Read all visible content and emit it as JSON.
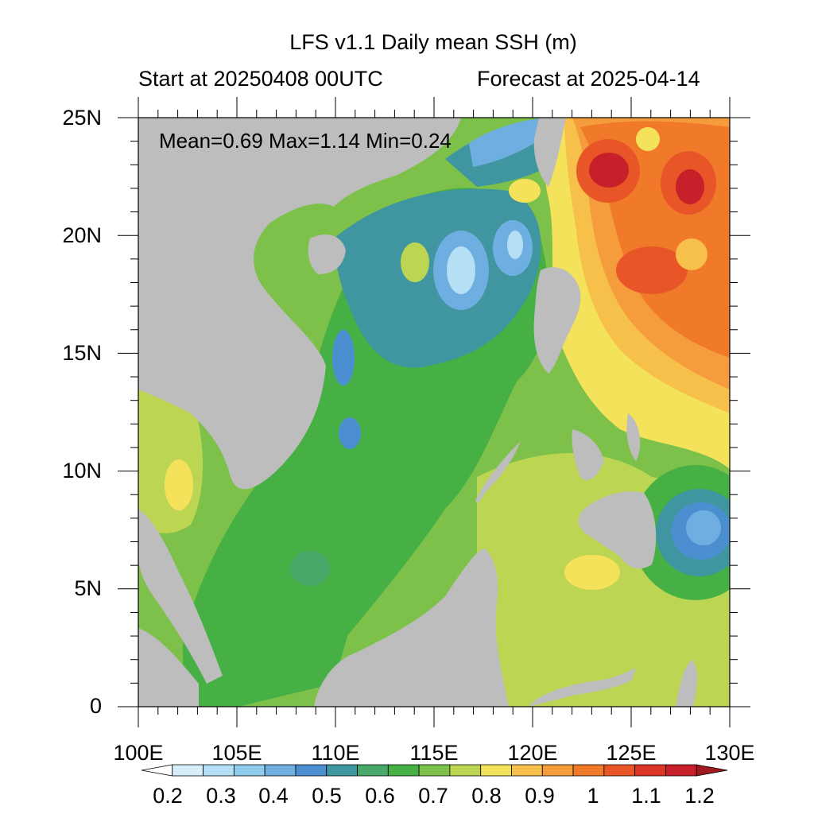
{
  "header": {
    "title": "LFS v1.1 Daily mean SSH (m)",
    "start": "Start at 20250408 00UTC",
    "forecast": "Forecast at 2025-04-14"
  },
  "stats": {
    "text": "Mean=0.69  Max=1.14  Min=0.24"
  },
  "axes": {
    "x_ticks": [
      "100E",
      "105E",
      "110E",
      "115E",
      "120E",
      "125E",
      "130E"
    ],
    "y_ticks": [
      "25N",
      "20N",
      "15N",
      "10N",
      "5N",
      "0"
    ]
  },
  "colorbar": {
    "labels": [
      "0.2",
      "0.3",
      "0.4",
      "0.5",
      "0.6",
      "0.7",
      "0.8",
      "0.9",
      "1",
      "1.1",
      "1.2"
    ],
    "colors": [
      "#ffffff",
      "#d6eef9",
      "#b4dff4",
      "#8fcbed",
      "#6eaee0",
      "#4c8fd0",
      "#3f96a0",
      "#48a86a",
      "#46b045",
      "#7dc14a",
      "#bcd653",
      "#f4e35a",
      "#f7c04a",
      "#f59c3c",
      "#f07a2a",
      "#e85628",
      "#dc3626",
      "#c8202a",
      "#a01a20"
    ]
  },
  "map": {
    "land_color": "#bdbdbd",
    "extent": {
      "lon": [
        100,
        130
      ],
      "lat": [
        0,
        25
      ]
    }
  }
}
